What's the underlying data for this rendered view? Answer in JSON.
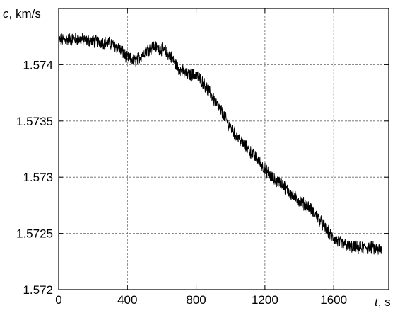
{
  "chart_data": {
    "type": "line",
    "title": "",
    "xlabel_var": "t",
    "xlabel_unit": ", s",
    "ylabel_var": "c",
    "ylabel_unit": ", km/s",
    "xlim": [
      0,
      1920
    ],
    "ylim": [
      1.572,
      1.5745
    ],
    "x_ticks": [
      0,
      400,
      800,
      1200,
      1600
    ],
    "x_tick_labels": [
      "0",
      "400",
      "800",
      "1200",
      "1600"
    ],
    "y_ticks": [
      1.572,
      1.5725,
      1.573,
      1.5735,
      1.574
    ],
    "y_tick_labels": [
      "1.572",
      "1.5725",
      "1.573",
      "1.5735",
      "1.574"
    ],
    "grid": true,
    "grid_style": "dashed",
    "series_color": "#000000",
    "noise_amplitude": 5e-05,
    "series": [
      {
        "x": [
          0,
          100,
          200,
          300,
          350,
          400,
          450,
          500,
          550,
          600,
          650,
          700,
          750,
          800,
          850,
          900,
          950,
          1000,
          1050,
          1100,
          1150,
          1200,
          1250,
          1300,
          1350,
          1400,
          1450,
          1500,
          1550,
          1600,
          1650,
          1700,
          1750,
          1800,
          1850,
          1880
        ],
        "y": [
          1.57422,
          1.57423,
          1.57421,
          1.57419,
          1.57415,
          1.57406,
          1.57403,
          1.57412,
          1.57416,
          1.57414,
          1.57408,
          1.57396,
          1.57391,
          1.57391,
          1.57382,
          1.5737,
          1.57358,
          1.57344,
          1.57334,
          1.57325,
          1.57317,
          1.57307,
          1.57298,
          1.57294,
          1.57285,
          1.57279,
          1.57274,
          1.57266,
          1.57255,
          1.57245,
          1.57241,
          1.57238,
          1.57237,
          1.57238,
          1.57236,
          1.57235
        ]
      }
    ]
  }
}
